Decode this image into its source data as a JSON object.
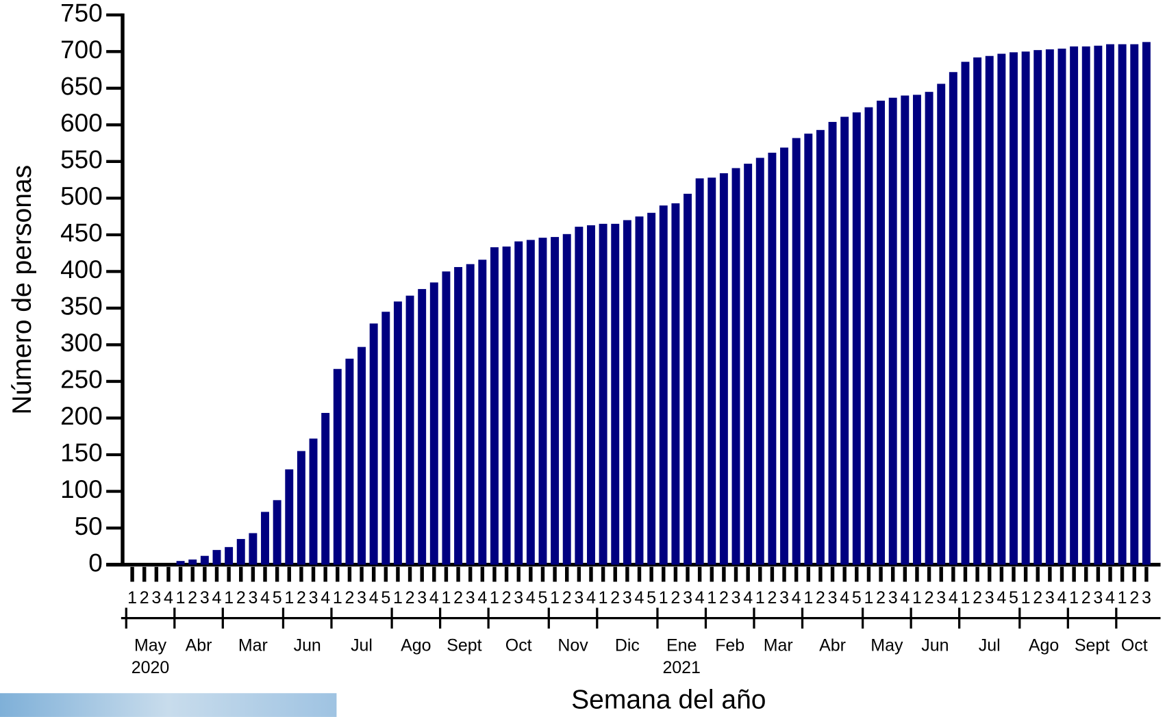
{
  "chart_data": {
    "type": "bar",
    "y_label": "Número de personas",
    "x_label": "Semana del año",
    "color": "#000080",
    "categories": [
      "1",
      "2",
      "3",
      "4",
      "1",
      "2",
      "3",
      "4",
      "1",
      "2",
      "3",
      "4",
      "5",
      "1",
      "2",
      "3",
      "4",
      "1",
      "2",
      "3",
      "4",
      "5",
      "1",
      "2",
      "3",
      "4",
      "1",
      "2",
      "3",
      "4",
      "1",
      "2",
      "3",
      "4",
      "5",
      "1",
      "2",
      "3",
      "4",
      "1",
      "2",
      "3",
      "4",
      "5",
      "1",
      "2",
      "3",
      "4",
      "1",
      "2",
      "3",
      "4",
      "1",
      "2",
      "3",
      "4",
      "1",
      "2",
      "3",
      "4",
      "5",
      "1",
      "2",
      "3",
      "4",
      "1",
      "2",
      "3",
      "4",
      "1",
      "2",
      "3",
      "4",
      "5",
      "1",
      "2",
      "3",
      "4",
      "1",
      "2",
      "3",
      "4",
      "1",
      "2",
      "3"
    ],
    "months": [
      {
        "label": "May",
        "year": "2020"
      },
      {
        "label": "Abr"
      },
      {
        "label": "Mar"
      },
      {
        "label": "Jun"
      },
      {
        "label": "Jul"
      },
      {
        "label": "Ago"
      },
      {
        "label": "Sept"
      },
      {
        "label": "Oct"
      },
      {
        "label": "Nov"
      },
      {
        "label": "Dic"
      },
      {
        "label": "Ene",
        "year": "2021"
      },
      {
        "label": "Feb"
      },
      {
        "label": "Mar"
      },
      {
        "label": "Abr"
      },
      {
        "label": "May"
      },
      {
        "label": "Jun"
      },
      {
        "label": "Jul"
      },
      {
        "label": "Ago"
      },
      {
        "label": "Sept"
      },
      {
        "label": "Oct"
      }
    ],
    "values": [
      0,
      0,
      0,
      0,
      5,
      7,
      12,
      20,
      24,
      35,
      43,
      72,
      88,
      130,
      155,
      172,
      207,
      267,
      281,
      297,
      329,
      345,
      359,
      367,
      376,
      385,
      400,
      406,
      410,
      416,
      433,
      434,
      441,
      443,
      446,
      447,
      451,
      461,
      463,
      465,
      465,
      470,
      475,
      480,
      490,
      493,
      506,
      527,
      528,
      534,
      541,
      547,
      555,
      562,
      569,
      582,
      588,
      593,
      604,
      611,
      617,
      624,
      633,
      637,
      640,
      641,
      645,
      656,
      672,
      686,
      692,
      694,
      697,
      699,
      700,
      702,
      703,
      704,
      707,
      707,
      708,
      710,
      710,
      710,
      713
    ],
    "ylim": [
      0,
      750
    ],
    "yticks": [
      0,
      50,
      100,
      150,
      200,
      250,
      300,
      350,
      400,
      450,
      500,
      550,
      600,
      650,
      700,
      750
    ]
  }
}
